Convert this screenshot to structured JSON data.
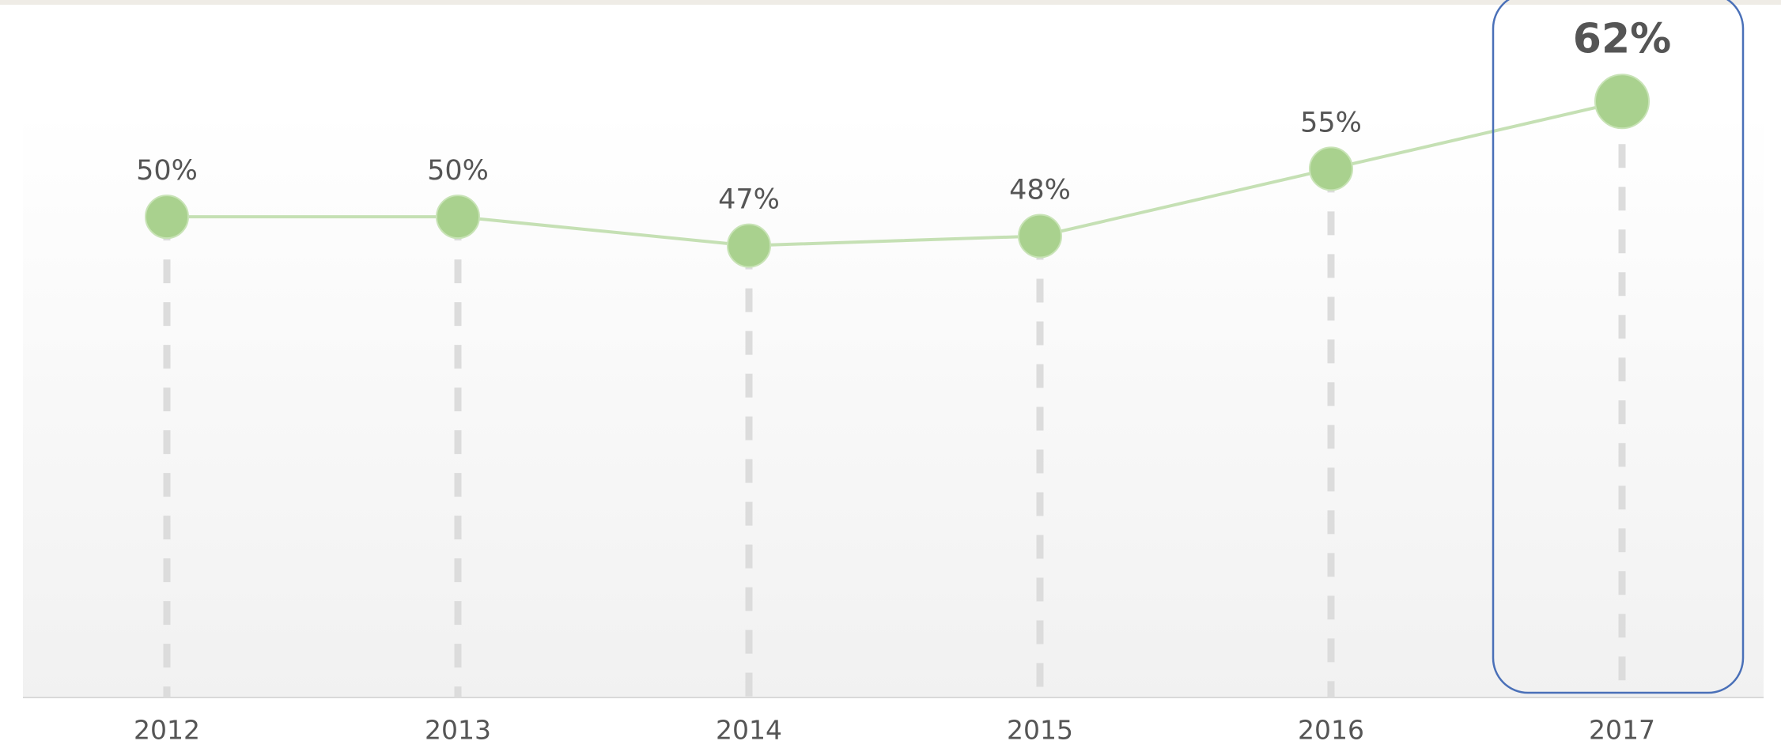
{
  "chart_data": {
    "type": "line",
    "categories": [
      "2012",
      "2013",
      "2014",
      "2015",
      "2016",
      "2017"
    ],
    "values": [
      50,
      50,
      47,
      48,
      55,
      62
    ],
    "value_labels": [
      "50%",
      "50%",
      "47%",
      "48%",
      "55%",
      "62%"
    ],
    "color": "#a9d18e",
    "ylim": [
      0,
      70
    ]
  }
}
